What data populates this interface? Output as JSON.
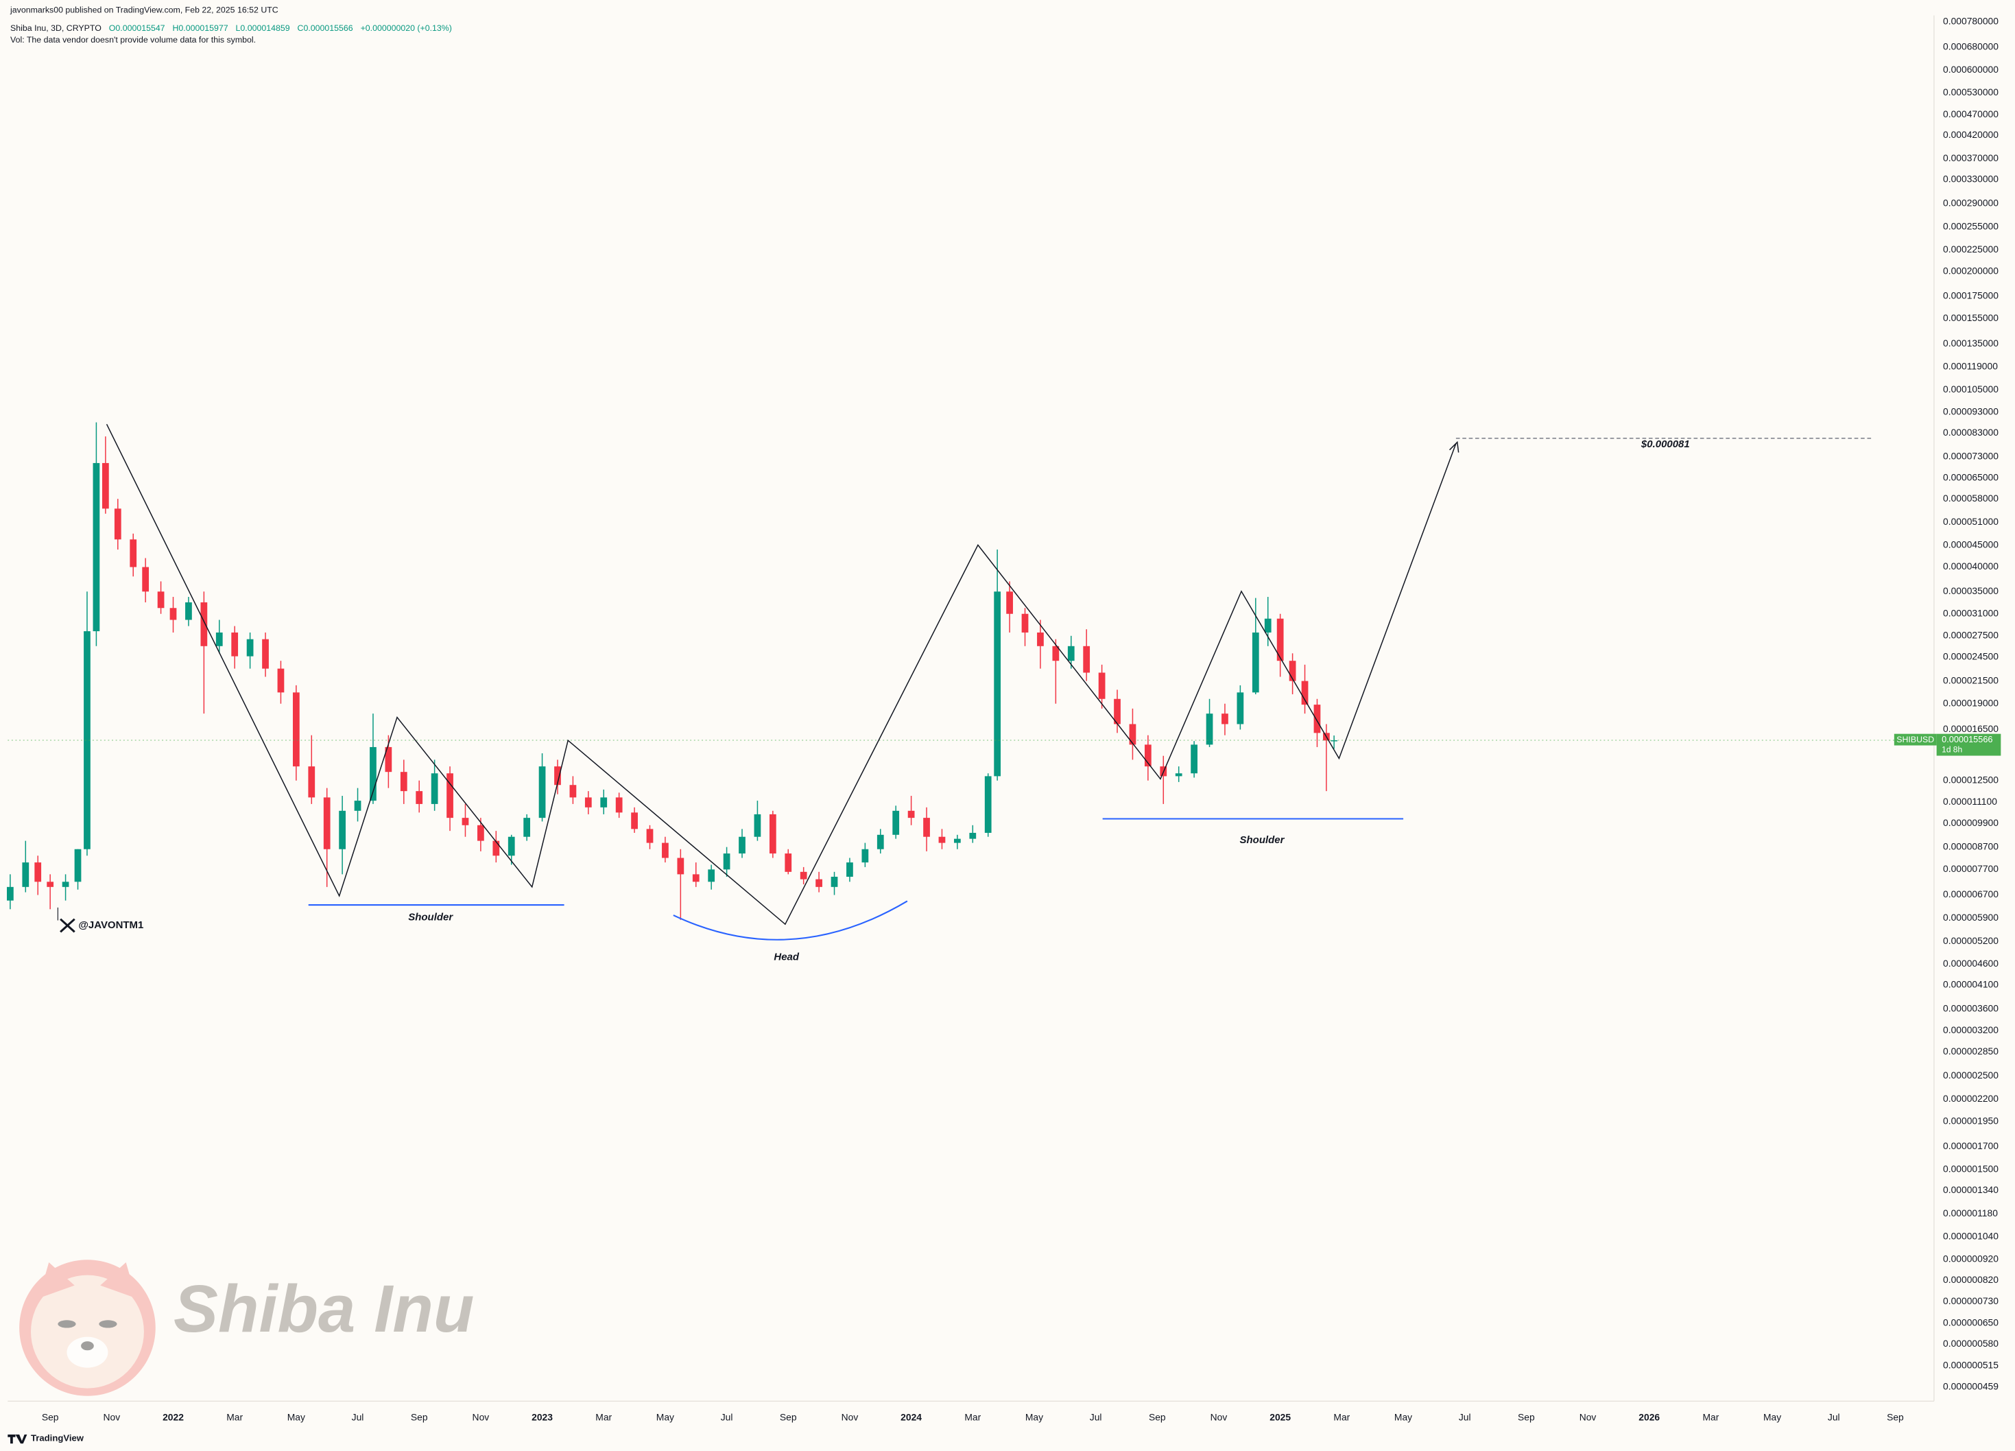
{
  "header": {
    "published": "javonmarks00 published on TradingView.com, Feb 22, 2025 16:52 UTC",
    "symbol": "Shiba Inu, 3D, CRYPTO",
    "ohlc": [
      "O0.000015547",
      "H0.000015977",
      "L0.000014859",
      "C0.000015566"
    ],
    "change": "+0.000000020 (+0.13%)",
    "vol_note": "Vol: The data vendor doesn't provide volume data for this symbol."
  },
  "watermark": {
    "handle": "@JAVONTM1",
    "name": "Shiba Inu"
  },
  "footer": "TradingView",
  "chart_data": {
    "type": "candlestick",
    "log_scale": true,
    "grid": false,
    "up_color": "#089981",
    "down_color": "#f23645",
    "annotations": {
      "left_shoulder": "Shoulder",
      "head": "Head",
      "right_shoulder": "Shoulder",
      "target": "$0.000081"
    },
    "price_label": {
      "symbol": "SHIBUSD",
      "value": {
        "value": 1.5566e-05,
        "label": "0.000015566"
      },
      "countdown": "1d 8h",
      "color": "#4caf50"
    },
    "xlim": [
      -1.38,
      61.26
    ],
    "xticks": [
      {
        "value": 0,
        "label": "Sep"
      },
      {
        "value": 2,
        "label": "Nov"
      },
      {
        "value": 4,
        "label": "2022"
      },
      {
        "value": 6,
        "label": "Mar"
      },
      {
        "value": 8,
        "label": "May"
      },
      {
        "value": 10,
        "label": "Jul"
      },
      {
        "value": 12,
        "label": "Sep"
      },
      {
        "value": 14,
        "label": "Nov"
      },
      {
        "value": 16,
        "label": "2023"
      },
      {
        "value": 18,
        "label": "Mar"
      },
      {
        "value": 20,
        "label": "May"
      },
      {
        "value": 22,
        "label": "Jul"
      },
      {
        "value": 24,
        "label": "Sep"
      },
      {
        "value": 26,
        "label": "Nov"
      },
      {
        "value": 28,
        "label": "2024"
      },
      {
        "value": 30,
        "label": "Mar"
      },
      {
        "value": 32,
        "label": "May"
      },
      {
        "value": 34,
        "label": "Jul"
      },
      {
        "value": 36,
        "label": "Sep"
      },
      {
        "value": 38,
        "label": "Nov"
      },
      {
        "value": 40,
        "label": "2025"
      },
      {
        "value": 42,
        "label": "Mar"
      },
      {
        "value": 44,
        "label": "May"
      },
      {
        "value": 46,
        "label": "Jul"
      },
      {
        "value": 48,
        "label": "Sep"
      },
      {
        "value": 50,
        "label": "Nov"
      },
      {
        "value": 52,
        "label": "2026"
      },
      {
        "value": 54,
        "label": "Mar"
      },
      {
        "value": 56,
        "label": "May"
      },
      {
        "value": 58,
        "label": "Jul"
      },
      {
        "value": 60,
        "label": "Sep"
      }
    ],
    "ylim": [
      4.25e-07,
      0.000808
    ],
    "yticks": [
      {
        "value": 0.00078,
        "label": "0.000780000"
      },
      {
        "value": 0.00068,
        "label": "0.000680000"
      },
      {
        "value": 0.0006,
        "label": "0.000600000"
      },
      {
        "value": 0.00053,
        "label": "0.000530000"
      },
      {
        "value": 0.00047,
        "label": "0.000470000"
      },
      {
        "value": 0.00042,
        "label": "0.000420000"
      },
      {
        "value": 0.00037,
        "label": "0.000370000"
      },
      {
        "value": 0.00033,
        "label": "0.000330000"
      },
      {
        "value": 0.00029,
        "label": "0.000290000"
      },
      {
        "value": 0.000255,
        "label": "0.000255000"
      },
      {
        "value": 0.000225,
        "label": "0.000225000"
      },
      {
        "value": 0.0002,
        "label": "0.000200000"
      },
      {
        "value": 0.000175,
        "label": "0.000175000"
      },
      {
        "value": 0.000155,
        "label": "0.000155000"
      },
      {
        "value": 0.000135,
        "label": "0.000135000"
      },
      {
        "value": 0.000119,
        "label": "0.000119000"
      },
      {
        "value": 0.000105,
        "label": "0.000105000"
      },
      {
        "value": 9.3e-05,
        "label": "0.000093000"
      },
      {
        "value": 8.3e-05,
        "label": "0.000083000"
      },
      {
        "value": 7.3e-05,
        "label": "0.000073000"
      },
      {
        "value": 6.5e-05,
        "label": "0.000065000"
      },
      {
        "value": 5.8e-05,
        "label": "0.000058000"
      },
      {
        "value": 5.1e-05,
        "label": "0.000051000"
      },
      {
        "value": 4.5e-05,
        "label": "0.000045000"
      },
      {
        "value": 4e-05,
        "label": "0.000040000"
      },
      {
        "value": 3.5e-05,
        "label": "0.000035000"
      },
      {
        "value": 3.1e-05,
        "label": "0.000031000"
      },
      {
        "value": 2.75e-05,
        "label": "0.000027500"
      },
      {
        "value": 2.45e-05,
        "label": "0.000024500"
      },
      {
        "value": 2.15e-05,
        "label": "0.000021500"
      },
      {
        "value": 1.9e-05,
        "label": "0.000019000"
      },
      {
        "value": 1.65e-05,
        "label": "0.000016500"
      },
      {
        "value": 1.25e-05,
        "label": "0.000012500"
      },
      {
        "value": 1.11e-05,
        "label": "0.000011100"
      },
      {
        "value": 9.9e-06,
        "label": "0.000009900"
      },
      {
        "value": 8.7e-06,
        "label": "0.000008700"
      },
      {
        "value": 7.7e-06,
        "label": "0.000007700"
      },
      {
        "value": 6.7e-06,
        "label": "0.000006700"
      },
      {
        "value": 5.9e-06,
        "label": "0.000005900"
      },
      {
        "value": 5.2e-06,
        "label": "0.000005200"
      },
      {
        "value": 4.6e-06,
        "label": "0.000004600"
      },
      {
        "value": 4.1e-06,
        "label": "0.000004100"
      },
      {
        "value": 3.6e-06,
        "label": "0.000003600"
      },
      {
        "value": 3.2e-06,
        "label": "0.000003200"
      },
      {
        "value": 2.85e-06,
        "label": "0.000002850"
      },
      {
        "value": 2.5e-06,
        "label": "0.000002500"
      },
      {
        "value": 2.2e-06,
        "label": "0.000002200"
      },
      {
        "value": 1.95e-06,
        "label": "0.000001950"
      },
      {
        "value": 1.7e-06,
        "label": "0.000001700"
      },
      {
        "value": 1.5e-06,
        "label": "0.000001500"
      },
      {
        "value": 1.34e-06,
        "label": "0.000001340"
      },
      {
        "value": 1.18e-06,
        "label": "0.000001180"
      },
      {
        "value": 1.04e-06,
        "label": "0.000001040"
      },
      {
        "value": 9.2e-07,
        "label": "0.000000920"
      },
      {
        "value": 8.2e-07,
        "label": "0.000000820"
      },
      {
        "value": 7.3e-07,
        "label": "0.000000730"
      },
      {
        "value": 6.5e-07,
        "label": "0.000000650"
      },
      {
        "value": 5.8e-07,
        "label": "0.000000580"
      },
      {
        "value": 5.15e-07,
        "label": "0.000000515"
      },
      {
        "value": 4.59e-07,
        "label": "0.000000459"
      }
    ],
    "x": [
      -1.3,
      -0.8,
      -0.4,
      0,
      0.5,
      0.9,
      1.2,
      1.5,
      1.8,
      2.2,
      2.7,
      3.1,
      3.6,
      4,
      4.5,
      5,
      5.5,
      6,
      6.5,
      7,
      7.5,
      8,
      8.5,
      9,
      9.5,
      10,
      10.5,
      11,
      11.5,
      12,
      12.5,
      13,
      13.5,
      14,
      14.5,
      15,
      15.5,
      16,
      16.5,
      17,
      17.5,
      18,
      18.5,
      19,
      19.5,
      20,
      20.5,
      21,
      21.5,
      22,
      22.5,
      23,
      23.5,
      24,
      24.5,
      25,
      25.5,
      26,
      26.5,
      27,
      27.5,
      28,
      28.5,
      29,
      29.5,
      30,
      30.5,
      30.8,
      31.2,
      31.7,
      32.2,
      32.7,
      33.2,
      33.7,
      34.2,
      34.7,
      35.2,
      35.7,
      36.2,
      36.7,
      37.2,
      37.7,
      38.2,
      38.7,
      39.2,
      39.6,
      40,
      40.4,
      40.8,
      41.2,
      41.5,
      41.75
    ],
    "open": [
      6.5e-06,
      7e-06,
      8e-06,
      7.2e-06,
      7e-06,
      7.2e-06,
      8.6e-06,
      2.82e-05,
      7.05e-05,
      5.5e-05,
      4.65e-05,
      4e-05,
      3.5e-05,
      3.2e-05,
      3e-05,
      3.3e-05,
      2.6e-05,
      2.8e-05,
      2.46e-05,
      2.7e-05,
      2.3e-05,
      2.02e-05,
      1.35e-05,
      1.14e-05,
      8.6e-06,
      1.06e-05,
      1.12e-05,
      1.5e-05,
      1.31e-05,
      1.18e-05,
      1.1e-05,
      1.3e-05,
      1.02e-05,
      9.8e-06,
      9e-06,
      8.3e-06,
      9.2e-06,
      1.02e-05,
      1.35e-05,
      1.22e-05,
      1.14e-05,
      1.08e-05,
      1.14e-05,
      1.05e-05,
      9.6e-06,
      8.9e-06,
      8.2e-06,
      7.5e-06,
      7.2e-06,
      7.7e-06,
      8.4e-06,
      9.2e-06,
      1.04e-05,
      8.4e-06,
      7.6e-06,
      7.3e-06,
      7e-06,
      7.4e-06,
      8e-06,
      8.6e-06,
      9.3e-06,
      1.06e-05,
      1.02e-05,
      9.2e-06,
      8.9e-06,
      9.1e-06,
      9.4e-06,
      1.28e-05,
      3.5e-05,
      3.1e-05,
      2.8e-05,
      2.6e-05,
      2.4e-05,
      2.6e-05,
      2.25e-05,
      1.95e-05,
      1.7e-05,
      1.52e-05,
      1.35e-05,
      1.28e-05,
      1.3e-05,
      1.52e-05,
      1.8e-05,
      1.7e-05,
      2.02e-05,
      2.8e-05,
      3.02e-05,
      2.4e-05,
      2.15e-05,
      1.89e-05,
      1.62e-05,
      1.5547e-05
    ],
    "high": [
      7.5e-06,
      9e-06,
      8.3e-06,
      7.5e-06,
      7.5e-06,
      8.6e-06,
      3.5e-05,
      8.8e-05,
      8.15e-05,
      5.8e-05,
      4.8e-05,
      4.2e-05,
      3.7e-05,
      3.4e-05,
      3.4e-05,
      3.5e-05,
      3e-05,
      2.9e-05,
      2.8e-05,
      2.8e-05,
      2.4e-05,
      2.1e-05,
      1.6e-05,
      1.2e-05,
      1.15e-05,
      1.2e-05,
      1.8e-05,
      1.6e-05,
      1.4e-05,
      1.25e-05,
      1.4e-05,
      1.35e-05,
      1.1e-05,
      1.02e-05,
      9.5e-06,
      9.3e-06,
      1.04e-05,
      1.45e-05,
      1.4e-05,
      1.28e-05,
      1.18e-05,
      1.19e-05,
      1.17e-05,
      1.08e-05,
      9.8e-06,
      9.2e-06,
      8.6e-06,
      8e-06,
      7.9e-06,
      8.7e-06,
      9.6e-06,
      1.12e-05,
      1.06e-05,
      8.6e-06,
      7.8e-06,
      7.6e-06,
      7.6e-06,
      8.2e-06,
      8.9e-06,
      9.6e-06,
      1.09e-05,
      1.15e-05,
      1.08e-05,
      9.6e-06,
      9.3e-06,
      9.8e-06,
      1.3e-05,
      4.4e-05,
      3.7e-05,
      3.2e-05,
      3e-05,
      2.7e-05,
      2.75e-05,
      2.85e-05,
      2.35e-05,
      2.05e-05,
      1.85e-05,
      1.6e-05,
      1.43e-05,
      1.35e-05,
      1.55e-05,
      1.95e-05,
      1.9e-05,
      2.1e-05,
      3.38e-05,
      3.4e-05,
      3.1e-05,
      2.5e-05,
      2.35e-05,
      1.95e-05,
      1.7e-05,
      1.5977e-05
    ],
    "low": [
      6.2e-06,
      6.8e-06,
      6.7e-06,
      6.2e-06,
      6.5e-06,
      6.9e-06,
      8.3e-06,
      2.6e-05,
      5.35e-05,
      4.4e-05,
      3.8e-05,
      3.3e-05,
      3.1e-05,
      2.8e-05,
      2.9e-05,
      1.8e-05,
      2.5e-05,
      2.3e-05,
      2.3e-05,
      2.2e-05,
      1.9e-05,
      1.25e-05,
      1.1e-05,
      7e-06,
      7.5e-06,
      1e-05,
      1.1e-05,
      1.2e-05,
      1.1e-05,
      1.05e-05,
      1.06e-05,
      9.5e-06,
      9.2e-06,
      8.5e-06,
      8e-06,
      7.9e-06,
      9e-06,
      1e-05,
      1.16e-05,
      1.1e-05,
      1.04e-05,
      1.04e-05,
      1.02e-05,
      9.4e-06,
      8.6e-06,
      8e-06,
      5.85e-06,
      7e-06,
      6.9e-06,
      7.4e-06,
      8.2e-06,
      9e-06,
      8.2e-06,
      7.5e-06,
      7.1e-06,
      6.8e-06,
      6.7e-06,
      7.2e-06,
      7.8e-06,
      8.4e-06,
      9.1e-06,
      9.8e-06,
      8.5e-06,
      8.6e-06,
      8.6e-06,
      8.9e-06,
      9.2e-06,
      1.25e-05,
      2.8e-05,
      2.6e-05,
      2.3e-05,
      1.9e-05,
      2.3e-05,
      2.15e-05,
      1.85e-05,
      1.62e-05,
      1.4e-05,
      1.25e-05,
      1.1e-05,
      1.24e-05,
      1.27e-05,
      1.5e-05,
      1.6e-05,
      1.65e-05,
      2e-05,
      2.6e-05,
      2.2e-05,
      2e-05,
      1.8e-05,
      1.5e-05,
      1.18e-05,
      1.4859e-05
    ],
    "close": [
      7e-06,
      8e-06,
      7.2e-06,
      7e-06,
      7.2e-06,
      8.6e-06,
      2.82e-05,
      7.05e-05,
      5.5e-05,
      4.65e-05,
      4e-05,
      3.5e-05,
      3.2e-05,
      3e-05,
      3.3e-05,
      2.6e-05,
      2.8e-05,
      2.46e-05,
      2.7e-05,
      2.3e-05,
      2.02e-05,
      1.35e-05,
      1.14e-05,
      8.6e-06,
      1.06e-05,
      1.12e-05,
      1.5e-05,
      1.31e-05,
      1.18e-05,
      1.1e-05,
      1.3e-05,
      1.02e-05,
      9.8e-06,
      9e-06,
      8.3e-06,
      9.2e-06,
      1.02e-05,
      1.35e-05,
      1.22e-05,
      1.14e-05,
      1.08e-05,
      1.14e-05,
      1.05e-05,
      9.6e-06,
      8.9e-06,
      8.2e-06,
      7.5e-06,
      7.2e-06,
      7.7e-06,
      8.4e-06,
      9.2e-06,
      1.04e-05,
      8.4e-06,
      7.6e-06,
      7.3e-06,
      7e-06,
      7.4e-06,
      8e-06,
      8.6e-06,
      9.3e-06,
      1.06e-05,
      1.02e-05,
      9.2e-06,
      8.9e-06,
      9.1e-06,
      9.4e-06,
      1.28e-05,
      3.5e-05,
      3.1e-05,
      2.8e-05,
      2.6e-05,
      2.4e-05,
      2.6e-05,
      2.25e-05,
      1.95e-05,
      1.7e-05,
      1.52e-05,
      1.35e-05,
      1.28e-05,
      1.3e-05,
      1.52e-05,
      1.8e-05,
      1.7e-05,
      2.02e-05,
      2.8e-05,
      3.02e-05,
      2.4e-05,
      2.15e-05,
      1.89e-05,
      1.62e-05,
      1.5547e-05,
      1.5566e-05
    ]
  }
}
